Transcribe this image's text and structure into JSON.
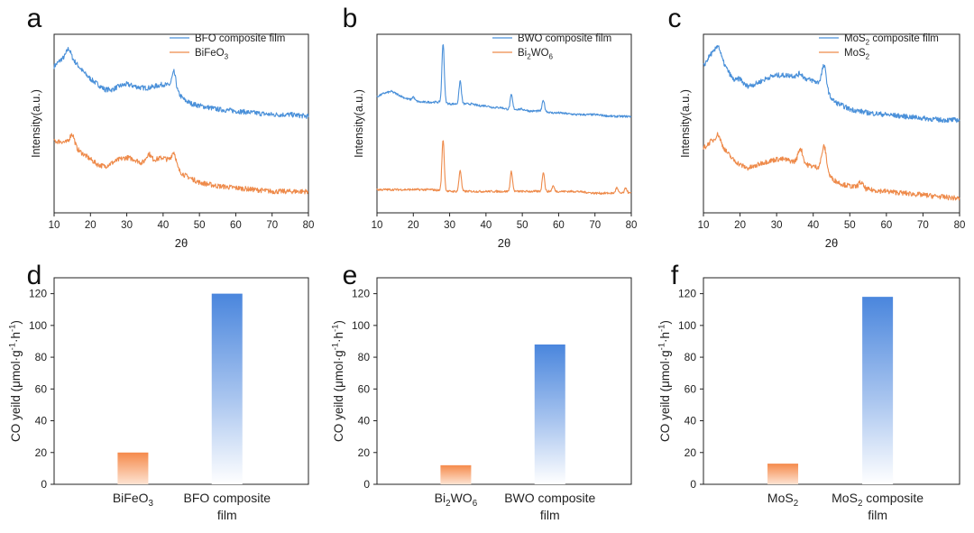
{
  "figure": {
    "xrd_curve_color_composite": "#4a90d9",
    "xrd_curve_color_pure": "#ee8a4a",
    "bar_color_composite": "#4a86dd",
    "bar_color_pure": "#f58a4b"
  },
  "chart_data": [
    {
      "id": "a",
      "type": "line",
      "panel_label": "a",
      "xlabel": "2θ",
      "ylabel": "Intensity(a.u.)",
      "xlim": [
        10,
        80
      ],
      "xticks": [
        10,
        20,
        30,
        40,
        50,
        60,
        70,
        80
      ],
      "series": [
        {
          "name_parts": [
            [
              "BFO composite film",
              "n"
            ]
          ],
          "role": "composite",
          "x": [
            10,
            12,
            14,
            16,
            18,
            20,
            22,
            24,
            26,
            28,
            30,
            32,
            34,
            36,
            38,
            40,
            42,
            43,
            44,
            46,
            48,
            50,
            55,
            60,
            65,
            70,
            75,
            80
          ],
          "y": [
            0.82,
            0.86,
            0.88,
            0.84,
            0.79,
            0.75,
            0.72,
            0.69,
            0.69,
            0.71,
            0.72,
            0.71,
            0.7,
            0.7,
            0.71,
            0.72,
            0.71,
            0.74,
            0.67,
            0.63,
            0.61,
            0.6,
            0.58,
            0.57,
            0.56,
            0.55,
            0.55,
            0.54
          ],
          "peaks": [
            [
              14,
              0.92
            ],
            [
              43,
              0.79
            ]
          ]
        },
        {
          "name_parts": [
            [
              "BiFeO",
              "n"
            ],
            [
              "3",
              "sub"
            ]
          ],
          "role": "pure",
          "x": [
            10,
            12,
            14,
            16,
            18,
            20,
            22,
            24,
            26,
            28,
            30,
            32,
            34,
            36,
            38,
            40,
            42,
            43,
            44,
            46,
            48,
            50,
            55,
            60,
            65,
            70,
            75,
            80
          ],
          "y": [
            0.4,
            0.4,
            0.39,
            0.36,
            0.33,
            0.3,
            0.27,
            0.26,
            0.28,
            0.3,
            0.31,
            0.3,
            0.28,
            0.29,
            0.3,
            0.31,
            0.29,
            0.28,
            0.24,
            0.21,
            0.19,
            0.17,
            0.15,
            0.14,
            0.13,
            0.12,
            0.12,
            0.12
          ],
          "peaks": [
            [
              15,
              0.44
            ],
            [
              36,
              0.33
            ],
            [
              43,
              0.34
            ]
          ]
        }
      ]
    },
    {
      "id": "b",
      "type": "line",
      "panel_label": "b",
      "xlabel": "2θ",
      "ylabel": "Intensity(a.u.)",
      "xlim": [
        10,
        80
      ],
      "xticks": [
        10,
        20,
        30,
        40,
        50,
        60,
        70,
        80
      ],
      "series": [
        {
          "name_parts": [
            [
              "BWO composite film",
              "n"
            ]
          ],
          "role": "composite",
          "x": [
            10,
            12,
            14,
            16,
            18,
            20,
            22,
            24,
            26,
            28,
            30,
            32,
            34,
            36,
            38,
            40,
            42,
            44,
            46,
            48,
            50,
            52,
            54,
            56,
            58,
            60,
            65,
            70,
            75,
            80
          ],
          "y": [
            0.65,
            0.67,
            0.68,
            0.66,
            0.64,
            0.63,
            0.62,
            0.62,
            0.62,
            0.62,
            0.61,
            0.61,
            0.61,
            0.61,
            0.6,
            0.6,
            0.59,
            0.59,
            0.58,
            0.58,
            0.58,
            0.57,
            0.57,
            0.57,
            0.56,
            0.56,
            0.55,
            0.55,
            0.54,
            0.54
          ],
          "peaks": [
            [
              28.2,
              0.95
            ],
            [
              32.9,
              0.74
            ],
            [
              20,
              0.65
            ],
            [
              47,
              0.66
            ],
            [
              55.8,
              0.63
            ]
          ]
        },
        {
          "name_parts": [
            [
              "Bi",
              "n"
            ],
            [
              "2",
              "sub"
            ],
            [
              "WO",
              "n"
            ],
            [
              "6",
              "sub"
            ]
          ],
          "role": "pure",
          "x": [
            10,
            15,
            20,
            25,
            30,
            35,
            40,
            45,
            50,
            55,
            60,
            65,
            70,
            75,
            80
          ],
          "y": [
            0.13,
            0.13,
            0.13,
            0.13,
            0.12,
            0.12,
            0.12,
            0.12,
            0.12,
            0.12,
            0.12,
            0.12,
            0.11,
            0.11,
            0.11
          ],
          "peaks": [
            [
              28.2,
              0.41
            ],
            [
              32.9,
              0.24
            ],
            [
              47,
              0.23
            ],
            [
              55.8,
              0.23
            ],
            [
              58.5,
              0.15
            ],
            [
              76,
              0.14
            ],
            [
              78.5,
              0.14
            ]
          ]
        }
      ]
    },
    {
      "id": "c",
      "type": "line",
      "panel_label": "c",
      "xlabel": "2θ",
      "ylabel": "Intensity(a.u.)",
      "xlim": [
        10,
        80
      ],
      "xticks": [
        10,
        20,
        30,
        40,
        50,
        60,
        70,
        80
      ],
      "series": [
        {
          "name_parts": [
            [
              "MoS",
              "n"
            ],
            [
              "2",
              "sub"
            ],
            [
              " composite film",
              "n"
            ]
          ],
          "role": "composite",
          "x": [
            10,
            12,
            14,
            16,
            18,
            20,
            22,
            24,
            26,
            28,
            30,
            32,
            34,
            36,
            38,
            40,
            42,
            44,
            46,
            48,
            50,
            55,
            60,
            65,
            70,
            75,
            80
          ],
          "y": [
            0.82,
            0.89,
            0.9,
            0.82,
            0.75,
            0.72,
            0.71,
            0.72,
            0.74,
            0.76,
            0.77,
            0.77,
            0.77,
            0.76,
            0.75,
            0.74,
            0.72,
            0.66,
            0.62,
            0.6,
            0.58,
            0.56,
            0.55,
            0.54,
            0.53,
            0.52,
            0.52
          ],
          "peaks": [
            [
              14,
              0.94
            ],
            [
              20,
              0.75
            ],
            [
              36.5,
              0.78
            ],
            [
              43,
              0.82
            ]
          ]
        },
        {
          "name_parts": [
            [
              "MoS",
              "n"
            ],
            [
              "2",
              "sub"
            ]
          ],
          "role": "pure",
          "x": [
            10,
            12,
            14,
            16,
            18,
            20,
            22,
            24,
            26,
            28,
            30,
            32,
            34,
            36,
            38,
            40,
            42,
            44,
            46,
            48,
            50,
            55,
            60,
            65,
            70,
            75,
            80
          ],
          "y": [
            0.36,
            0.4,
            0.41,
            0.35,
            0.3,
            0.27,
            0.25,
            0.26,
            0.28,
            0.29,
            0.3,
            0.3,
            0.29,
            0.28,
            0.27,
            0.26,
            0.25,
            0.21,
            0.18,
            0.16,
            0.15,
            0.13,
            0.12,
            0.11,
            0.1,
            0.09,
            0.08
          ],
          "peaks": [
            [
              14,
              0.44
            ],
            [
              36.5,
              0.36
            ],
            [
              43,
              0.37
            ],
            [
              53,
              0.17
            ]
          ]
        }
      ]
    },
    {
      "id": "d",
      "type": "bar",
      "panel_label": "d",
      "ylabel_parts": [
        [
          "CO yeild (μmol·g",
          "n"
        ],
        [
          "-1",
          "sup"
        ],
        [
          "·h",
          "n"
        ],
        [
          "-1",
          "sup"
        ],
        [
          ")",
          "n"
        ]
      ],
      "ylim": [
        0,
        130
      ],
      "yticks": [
        0,
        20,
        40,
        60,
        80,
        100,
        120
      ],
      "categories": [
        {
          "label_lines": [
            [
              [
                "BiFeO",
                "n"
              ],
              [
                "3",
                "sub"
              ]
            ]
          ],
          "value": 20,
          "role": "pure"
        },
        {
          "label_lines": [
            [
              [
                "BFO composite",
                "n"
              ]
            ],
            [
              [
                "film",
                "n"
              ]
            ]
          ],
          "value": 120,
          "role": "composite"
        }
      ]
    },
    {
      "id": "e",
      "type": "bar",
      "panel_label": "e",
      "ylabel_parts": [
        [
          "CO yeild (μmol·g",
          "n"
        ],
        [
          "-1",
          "sup"
        ],
        [
          "·h",
          "n"
        ],
        [
          "-1",
          "sup"
        ],
        [
          ")",
          "n"
        ]
      ],
      "ylim": [
        0,
        130
      ],
      "yticks": [
        0,
        20,
        40,
        60,
        80,
        100,
        120
      ],
      "categories": [
        {
          "label_lines": [
            [
              [
                "Bi",
                "n"
              ],
              [
                "2",
                "sub"
              ],
              [
                "WO",
                "n"
              ],
              [
                "6",
                "sub"
              ]
            ]
          ],
          "value": 12,
          "role": "pure"
        },
        {
          "label_lines": [
            [
              [
                "BWO composite",
                "n"
              ]
            ],
            [
              [
                "film",
                "n"
              ]
            ]
          ],
          "value": 88,
          "role": "composite"
        }
      ]
    },
    {
      "id": "f",
      "type": "bar",
      "panel_label": "f",
      "ylabel_parts": [
        [
          "CO yeild (μmol·g",
          "n"
        ],
        [
          "-1",
          "sup"
        ],
        [
          "·h",
          "n"
        ],
        [
          "-1",
          "sup"
        ],
        [
          ")",
          "n"
        ]
      ],
      "ylim": [
        0,
        130
      ],
      "yticks": [
        0,
        20,
        40,
        60,
        80,
        100,
        120
      ],
      "categories": [
        {
          "label_lines": [
            [
              [
                "MoS",
                "n"
              ],
              [
                "2",
                "sub"
              ]
            ]
          ],
          "value": 13,
          "role": "pure"
        },
        {
          "label_lines": [
            [
              [
                "MoS",
                "n"
              ],
              [
                "2",
                "sub"
              ],
              [
                " composite",
                "n"
              ]
            ],
            [
              [
                "film",
                "n"
              ]
            ]
          ],
          "value": 118,
          "role": "composite"
        }
      ]
    }
  ]
}
